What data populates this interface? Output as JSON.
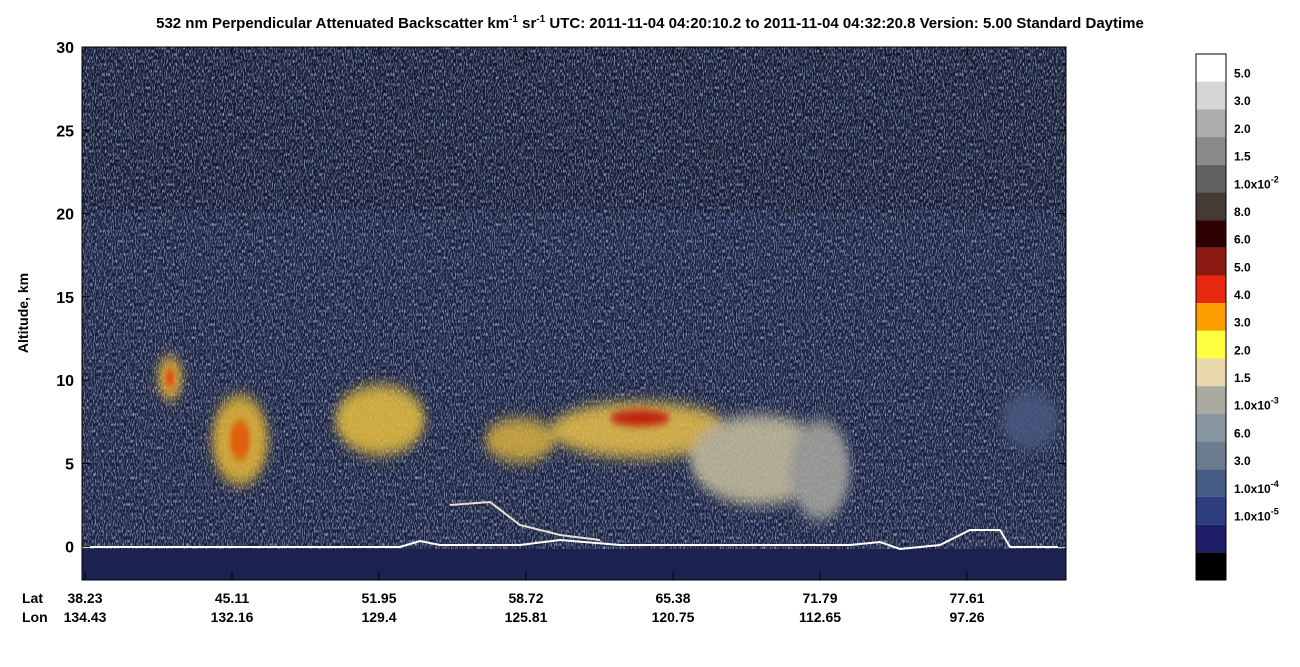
{
  "chart_data": {
    "type": "heatmap",
    "title": [
      "532 nm Perpendicular Attenuated Backscatter km",
      "-1",
      " sr",
      "-1",
      "  UTC: 2011-11-04 04:20:10.2 to 2011-11-04 04:32:20.8  Version: 5.00 Standard Daytime"
    ],
    "y_label": "Altitude, km",
    "ylim": [
      -2,
      30
    ],
    "yticks": [
      0,
      5,
      10,
      15,
      20,
      25,
      30
    ],
    "x_tick_rows": [
      {
        "name": "Lat",
        "labels": [
          38.23,
          45.11,
          51.95,
          58.72,
          65.38,
          71.79,
          77.61
        ]
      },
      {
        "name": "Lon",
        "labels": [
          134.43,
          132.16,
          129.4,
          125.81,
          120.75,
          112.65,
          97.26
        ]
      }
    ],
    "colorbar": {
      "colors": [
        "#ffffff",
        "#d6d6d6",
        "#adadad",
        "#8a8a8a",
        "#626262",
        "#463a34",
        "#2e0202",
        "#8a1a12",
        "#e8280e",
        "#ff9e00",
        "#ffff40",
        "#e8d8ac",
        "#a9aaa0",
        "#8796a0",
        "#6a7c8e",
        "#465c86",
        "#2e3c80",
        "#1e1e68",
        "#000000"
      ],
      "labels": [
        {
          "text": "5.0"
        },
        {
          "text": "3.0"
        },
        {
          "text": "2.0"
        },
        {
          "text": "1.5"
        },
        {
          "text": "1.0x10",
          "sup": "-2"
        },
        {
          "text": "8.0"
        },
        {
          "text": "6.0"
        },
        {
          "text": "5.0"
        },
        {
          "text": "4.0"
        },
        {
          "text": "3.0"
        },
        {
          "text": "2.0"
        },
        {
          "text": "1.5"
        },
        {
          "text": "1.0x10",
          "sup": "-3"
        },
        {
          "text": "6.0"
        },
        {
          "text": "3.0"
        },
        {
          "text": "1.0x10",
          "sup": "-4"
        },
        {
          "text": "1.0x10",
          "sup": "-5"
        }
      ]
    }
  }
}
